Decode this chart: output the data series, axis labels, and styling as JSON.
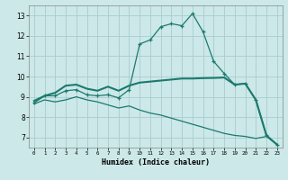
{
  "xlabel": "Humidex (Indice chaleur)",
  "xlim": [
    -0.5,
    23.5
  ],
  "ylim": [
    6.5,
    13.5
  ],
  "xticks": [
    0,
    1,
    2,
    3,
    4,
    5,
    6,
    7,
    8,
    9,
    10,
    11,
    12,
    13,
    14,
    15,
    16,
    17,
    18,
    19,
    20,
    21,
    22,
    23
  ],
  "yticks": [
    7,
    8,
    9,
    10,
    11,
    12,
    13
  ],
  "background_color": "#cce8e8",
  "grid_color": "#aacccc",
  "line_color": "#1a7a6e",
  "line1_x": [
    0,
    1,
    2,
    3,
    4,
    5,
    6,
    7,
    8,
    9,
    10,
    11,
    12,
    13,
    14,
    15,
    16,
    17,
    18,
    19,
    20,
    21,
    22,
    23
  ],
  "line1_y": [
    8.7,
    9.05,
    9.05,
    9.3,
    9.35,
    9.1,
    9.05,
    9.1,
    8.95,
    9.35,
    11.6,
    11.8,
    12.45,
    12.6,
    12.5,
    13.1,
    12.2,
    10.75,
    10.15,
    9.6,
    9.65,
    8.85,
    7.1,
    6.65
  ],
  "line2_x": [
    0,
    1,
    2,
    3,
    4,
    5,
    6,
    7,
    8,
    9,
    10,
    11,
    12,
    13,
    14,
    15,
    16,
    17,
    18,
    19,
    20,
    21,
    22,
    23
  ],
  "line2_y": [
    8.8,
    9.05,
    9.2,
    9.55,
    9.6,
    9.4,
    9.3,
    9.5,
    9.3,
    9.55,
    9.7,
    9.75,
    9.8,
    9.85,
    9.9,
    9.9,
    9.92,
    9.93,
    9.95,
    9.6,
    9.65,
    8.85,
    7.1,
    6.65
  ],
  "line3_x": [
    0,
    1,
    2,
    3,
    4,
    5,
    6,
    7,
    8,
    9,
    10,
    11,
    12,
    13,
    14,
    15,
    16,
    17,
    18,
    19,
    20,
    21,
    22,
    23
  ],
  "line3_y": [
    8.65,
    8.85,
    8.75,
    8.85,
    9.0,
    8.85,
    8.75,
    8.6,
    8.45,
    8.55,
    8.35,
    8.2,
    8.1,
    7.95,
    7.8,
    7.65,
    7.5,
    7.35,
    7.2,
    7.1,
    7.05,
    6.95,
    7.05,
    6.65
  ]
}
